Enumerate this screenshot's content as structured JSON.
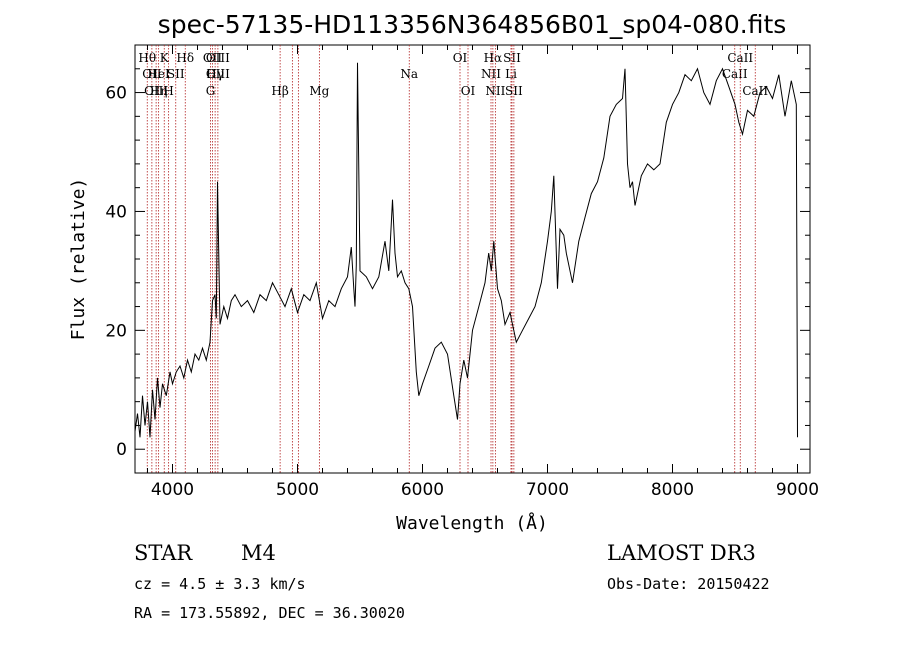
{
  "chart_data": {
    "type": "line",
    "title": "spec-57135-HD113356N364856B01_sp04-080.fits",
    "xlabel": "Wavelength (Å)",
    "ylabel": "Flux (relative)",
    "xlim": [
      3700,
      9100
    ],
    "ylim": [
      -4,
      68
    ],
    "x_ticks": [
      4000,
      5000,
      6000,
      7000,
      8000,
      9000
    ],
    "y_ticks": [
      0,
      20,
      40,
      60
    ],
    "x_tick_labels": [
      "4000",
      "5000",
      "6000",
      "7000",
      "8000",
      "9000"
    ],
    "y_tick_labels": [
      "0",
      "20",
      "40",
      "60"
    ],
    "series": [
      {
        "x": [
          3700,
          3720,
          3740,
          3760,
          3780,
          3800,
          3820,
          3840,
          3860,
          3880,
          3900,
          3920,
          3950,
          3980,
          4000,
          4030,
          4060,
          4090,
          4120,
          4150,
          4180,
          4210,
          4240,
          4270,
          4300,
          4320,
          4340,
          4350,
          4360,
          4380,
          4410,
          4440,
          4470,
          4500,
          4550,
          4600,
          4650,
          4700,
          4750,
          4800,
          4850,
          4900,
          4950,
          5000,
          5050,
          5100,
          5150,
          5200,
          5250,
          5300,
          5350,
          5400,
          5430,
          5450,
          5460,
          5470,
          5480,
          5500,
          5550,
          5600,
          5650,
          5700,
          5730,
          5750,
          5760,
          5780,
          5800,
          5830,
          5860,
          5890,
          5920,
          5950,
          5970,
          6000,
          6050,
          6100,
          6150,
          6200,
          6250,
          6280,
          6300,
          6330,
          6360,
          6400,
          6450,
          6500,
          6530,
          6550,
          6570,
          6600,
          6630,
          6660,
          6700,
          6750,
          6800,
          6850,
          6900,
          6950,
          7000,
          7030,
          7050,
          7080,
          7100,
          7130,
          7150,
          7200,
          7250,
          7300,
          7350,
          7400,
          7450,
          7500,
          7550,
          7600,
          7620,
          7640,
          7660,
          7680,
          7700,
          7750,
          7800,
          7850,
          7900,
          7950,
          8000,
          8050,
          8100,
          8150,
          8200,
          8250,
          8300,
          8350,
          8400,
          8450,
          8500,
          8530,
          8560,
          8600,
          8650,
          8700,
          8750,
          8800,
          8850,
          8900,
          8950,
          8990,
          9000
        ],
        "y": [
          3,
          6,
          2,
          9,
          4,
          8,
          2,
          10,
          5,
          12,
          7,
          11,
          9,
          13,
          11,
          13,
          14,
          12,
          15,
          13,
          16,
          15,
          17,
          15,
          18,
          25,
          26,
          22,
          45,
          21,
          24,
          22,
          25,
          26,
          24,
          25,
          23,
          26,
          25,
          28,
          26,
          24,
          27,
          23,
          26,
          25,
          28,
          22,
          25,
          24,
          27,
          29,
          34,
          27,
          24,
          31,
          65,
          30,
          29,
          27,
          29,
          35,
          30,
          38,
          42,
          33,
          29,
          30,
          28,
          27,
          24,
          13,
          9,
          11,
          14,
          17,
          18,
          16,
          9,
          5,
          11,
          15,
          12,
          20,
          24,
          28,
          33,
          30,
          35,
          27,
          25,
          21,
          23,
          18,
          20,
          22,
          24,
          28,
          35,
          40,
          46,
          27,
          37,
          36,
          33,
          28,
          35,
          39,
          43,
          45,
          49,
          56,
          58,
          59,
          64,
          48,
          44,
          45,
          41,
          46,
          48,
          47,
          48,
          55,
          58,
          60,
          63,
          62,
          64,
          60,
          58,
          62,
          64,
          61,
          58,
          55,
          53,
          57,
          56,
          60,
          61,
          59,
          63,
          56,
          62,
          58,
          2
        ]
      }
    ],
    "annotations": {
      "lines": [
        {
          "w": 3798,
          "labels": [
            {
              "t": "Hθ",
              "r": 0
            }
          ]
        },
        {
          "w": 3835,
          "labels": [
            {
              "t": "OII",
              "r": 1
            }
          ]
        },
        {
          "w": 3869,
          "labels": [
            {
              "t": "OIII",
              "r": 2
            }
          ]
        },
        {
          "w": 3889,
          "labels": [
            {
              "t": "HeI",
              "r": 1
            },
            {
              "t": "Hη",
              "r": 2
            }
          ]
        },
        {
          "w": 3934,
          "labels": [
            {
              "t": "K",
              "r": 0
            }
          ]
        },
        {
          "w": 3969,
          "labels": [
            {
              "t": "H",
              "r": 2
            }
          ]
        },
        {
          "w": 4026,
          "labels": [
            {
              "t": "SII",
              "r": 1
            }
          ]
        },
        {
          "w": 4102,
          "labels": [
            {
              "t": "Hδ",
              "r": 0
            }
          ]
        },
        {
          "w": 4304,
          "labels": [
            {
              "t": "G",
              "r": 2
            }
          ]
        },
        {
          "w": 4320,
          "labels": [
            {
              "t": "OII",
              "r": 0
            }
          ]
        },
        {
          "w": 4341,
          "labels": [
            {
              "t": "Hγ",
              "r": 1
            }
          ]
        },
        {
          "w": 4363,
          "labels": [
            {
              "t": "OIII",
              "r": 0
            },
            {
              "t": "OIII",
              "r": 1
            }
          ]
        },
        {
          "w": 4861,
          "labels": [
            {
              "t": "Hβ",
              "r": 2
            }
          ]
        },
        {
          "w": 4959,
          "labels": []
        },
        {
          "w": 5007,
          "labels": []
        },
        {
          "w": 5175,
          "labels": [
            {
              "t": "Mg",
              "r": 2
            }
          ]
        },
        {
          "w": 5894,
          "labels": [
            {
              "t": "Na",
              "r": 1
            }
          ]
        },
        {
          "w": 6300,
          "labels": [
            {
              "t": "OI",
              "r": 0
            }
          ]
        },
        {
          "w": 6364,
          "labels": [
            {
              "t": "OI",
              "r": 2
            }
          ]
        },
        {
          "w": 6548,
          "labels": [
            {
              "t": "NII",
              "r": 1
            }
          ]
        },
        {
          "w": 6563,
          "labels": [
            {
              "t": "Hα",
              "r": 0
            }
          ]
        },
        {
          "w": 6583,
          "labels": [
            {
              "t": "NII",
              "r": 2
            }
          ]
        },
        {
          "w": 6708,
          "labels": [
            {
              "t": "Li",
              "r": 1
            }
          ]
        },
        {
          "w": 6716,
          "labels": [
            {
              "t": "SII",
              "r": 0
            }
          ]
        },
        {
          "w": 6731,
          "labels": [
            {
              "t": "SII",
              "r": 2
            }
          ]
        },
        {
          "w": 8498,
          "labels": [
            {
              "t": "CaII",
              "r": 1
            }
          ]
        },
        {
          "w": 8542,
          "labels": [
            {
              "t": "CaII",
              "r": 0
            }
          ]
        },
        {
          "w": 8662,
          "labels": [
            {
              "t": "CaII",
              "r": 2
            }
          ]
        }
      ]
    },
    "colors": {
      "spectrum": "#000000",
      "line_markers": "#b22222",
      "axes": "#000000"
    }
  },
  "info": {
    "class_label": "STAR",
    "subclass": "M4",
    "cz": "cz = 4.5 ± 3.3 km/s",
    "radec": "RA = 173.55892, DEC =  36.30020",
    "survey": "LAMOST DR3",
    "obs_date": "Obs-Date: 20150422"
  }
}
